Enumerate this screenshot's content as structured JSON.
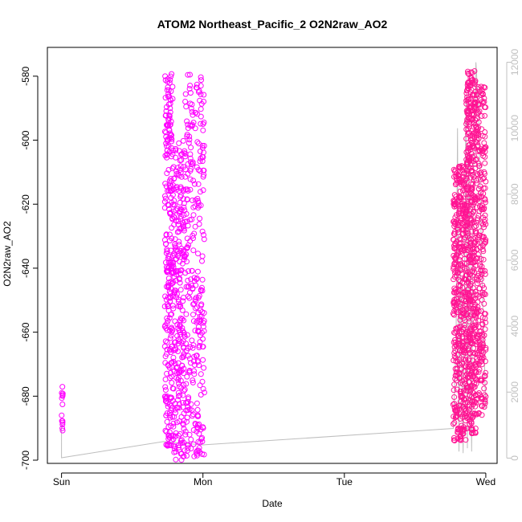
{
  "chart_data": {
    "type": "scatter",
    "title": "ATOM2 Northeast_Pacific_2 O2N2raw_AO2",
    "xlabel": "Date",
    "ylabel": "O2N2raw_AO2",
    "x_ticks": [
      "Sun",
      "Mon",
      "Tue",
      "Wed"
    ],
    "y_ticks": [
      "-700",
      "-680",
      "-660",
      "-640",
      "-620",
      "-600",
      "-580"
    ],
    "y_ticks_right": [
      "0",
      "2000",
      "4000",
      "6000",
      "8000",
      "10000",
      "12000"
    ],
    "ylim": [
      -701,
      -571
    ],
    "ylim_right": [
      -160,
      12450
    ],
    "xlim_days": [
      -0.1,
      3.08
    ],
    "grid": false,
    "colors": {
      "early_points": "#ff00ff",
      "late_points": "#ff1493",
      "altitude_line": "#bebebe",
      "right_axis": "#c0c0c0"
    },
    "series": [
      {
        "marker": "open-circle",
        "segments": [
          {
            "day_start": 0.0,
            "day_end": 0.01,
            "y_min": -694,
            "y_max": -677,
            "n": 14
          },
          {
            "day_start": 0.73,
            "day_end": 0.79,
            "y_min": -696,
            "y_max": -579,
            "n": 260
          },
          {
            "day_start": 0.79,
            "day_end": 0.87,
            "y_min": -700,
            "y_max": -600,
            "n": 240
          },
          {
            "day_start": 0.87,
            "day_end": 1.01,
            "y_min": -699,
            "y_max": -579,
            "n": 300
          }
        ]
      },
      {
        "marker": "open-circle",
        "segments": [
          {
            "day_start": 2.77,
            "day_end": 2.86,
            "y_min": -694,
            "y_max": -608,
            "n": 420
          },
          {
            "day_start": 2.86,
            "day_end": 2.93,
            "y_min": -692,
            "y_max": -578,
            "n": 460
          },
          {
            "day_start": 2.93,
            "day_end": 3.0,
            "y_min": -686,
            "y_max": -583,
            "n": 280
          }
        ]
      },
      {
        "type": "line",
        "axis": "right",
        "points": [
          [
            0.0,
            1000
          ],
          [
            0.0,
            10
          ],
          [
            0.72,
            500
          ],
          [
            1.0,
            400
          ],
          [
            2.77,
            900
          ],
          [
            2.79,
            3500
          ],
          [
            2.8,
            10000
          ],
          [
            2.81,
            200
          ],
          [
            2.82,
            6000
          ],
          [
            2.84,
            150
          ],
          [
            2.86,
            11000
          ],
          [
            2.87,
            300
          ],
          [
            2.88,
            9000
          ],
          [
            2.9,
            200
          ],
          [
            2.91,
            8000
          ],
          [
            2.93,
            12000
          ],
          [
            2.95,
            10500
          ],
          [
            2.97,
            6000
          ],
          [
            3.0,
            1500
          ]
        ]
      }
    ]
  }
}
